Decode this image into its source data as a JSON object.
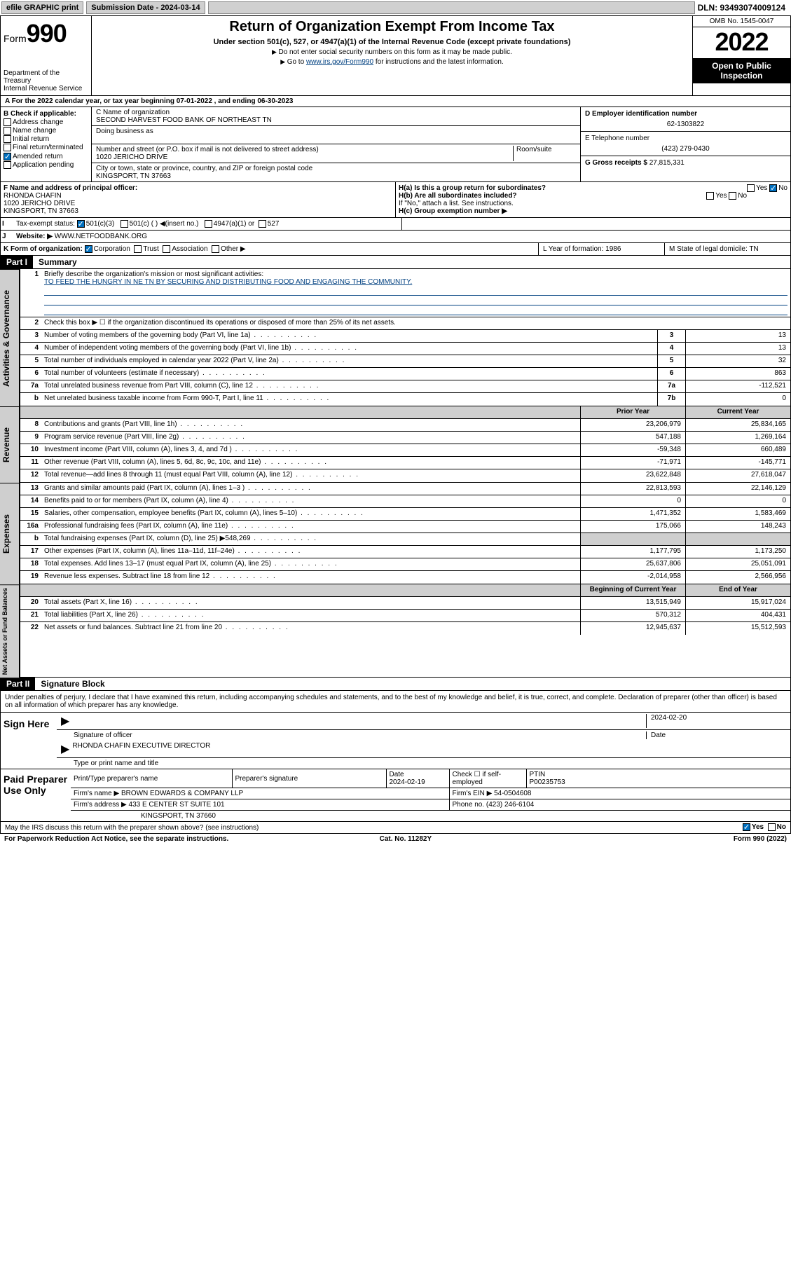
{
  "topbar": {
    "efile": "efile GRAPHIC print",
    "submission_label": "Submission Date - 2024-03-14",
    "dln": "DLN: 93493074009124"
  },
  "header": {
    "form_label": "Form",
    "form_number": "990",
    "dept": "Department of the Treasury",
    "irs": "Internal Revenue Service",
    "title": "Return of Organization Exempt From Income Tax",
    "subtitle": "Under section 501(c), 527, or 4947(a)(1) of the Internal Revenue Code (except private foundations)",
    "note1": "Do not enter social security numbers on this form as it may be made public.",
    "note2_pre": "Go to ",
    "note2_link": "www.irs.gov/Form990",
    "note2_post": " for instructions and the latest information.",
    "omb": "OMB No. 1545-0047",
    "year": "2022",
    "open": "Open to Public Inspection"
  },
  "A": {
    "text": "For the 2022 calendar year, or tax year beginning 07-01-2022    , and ending 06-30-2023"
  },
  "B": {
    "label": "B Check if applicable:",
    "opts": [
      "Address change",
      "Name change",
      "Initial return",
      "Final return/terminated",
      "Amended return",
      "Application pending"
    ],
    "checked_idx": 4
  },
  "C": {
    "label": "C Name of organization",
    "name": "SECOND HARVEST FOOD BANK OF NORTHEAST TN",
    "dba_label": "Doing business as",
    "street_label": "Number and street (or P.O. box if mail is not delivered to street address)",
    "room_label": "Room/suite",
    "street": "1020 JERICHO DRIVE",
    "city_label": "City or town, state or province, country, and ZIP or foreign postal code",
    "city": "KINGSPORT, TN  37663"
  },
  "D": {
    "label": "D Employer identification number",
    "val": "62-1303822"
  },
  "E": {
    "label": "E Telephone number",
    "val": "(423) 279-0430"
  },
  "G": {
    "label": "G Gross receipts $",
    "val": "27,815,331"
  },
  "F": {
    "label": "F  Name and address of principal officer:",
    "name": "RHONDA CHAFIN",
    "addr1": "1020 JERICHO DRIVE",
    "addr2": "KINGSPORT, TN  37663"
  },
  "H": {
    "a": "H(a)  Is this a group return for subordinates?",
    "b": "H(b)  Are all subordinates included?",
    "b_note": "If \"No,\" attach a list. See instructions.",
    "c": "H(c)  Group exemption number ▶",
    "yes": "Yes",
    "no": "No"
  },
  "I": {
    "label": "Tax-exempt status:",
    "opts": [
      "501(c)(3)",
      "501(c) (  ) ◀(insert no.)",
      "4947(a)(1) or",
      "527"
    ],
    "checked_idx": 0
  },
  "J": {
    "label": "Website: ▶",
    "val": "WWW.NETFOODBANK.ORG"
  },
  "K": {
    "label": "K Form of organization:",
    "opts": [
      "Corporation",
      "Trust",
      "Association",
      "Other ▶"
    ],
    "checked_idx": 0
  },
  "L": {
    "label": "L Year of formation: 1986"
  },
  "M": {
    "label": "M State of legal domicile: TN"
  },
  "part1": {
    "hdr": "Part I",
    "title": "Summary",
    "l1_label": "Briefly describe the organization's mission or most significant activities:",
    "l1_text": "TO FEED THE HUNGRY IN NE TN BY SECURING AND DISTRIBUTING FOOD AND ENGAGING THE COMMUNITY.",
    "l2": "Check this box ▶ ☐  if the organization discontinued its operations or disposed of more than 25% of its net assets.",
    "rows_gov": [
      {
        "n": "3",
        "t": "Number of voting members of the governing body (Part VI, line 1a)",
        "box": "3",
        "v": "13"
      },
      {
        "n": "4",
        "t": "Number of independent voting members of the governing body (Part VI, line 1b)",
        "box": "4",
        "v": "13"
      },
      {
        "n": "5",
        "t": "Total number of individuals employed in calendar year 2022 (Part V, line 2a)",
        "box": "5",
        "v": "32"
      },
      {
        "n": "6",
        "t": "Total number of volunteers (estimate if necessary)",
        "box": "6",
        "v": "863"
      },
      {
        "n": "7a",
        "t": "Total unrelated business revenue from Part VIII, column (C), line 12",
        "box": "7a",
        "v": "-112,521"
      },
      {
        "n": "b",
        "t": "Net unrelated business taxable income from Form 990-T, Part I, line 11",
        "box": "7b",
        "v": "0"
      }
    ],
    "col_prior": "Prior Year",
    "col_curr": "Current Year",
    "rows_rev": [
      {
        "n": "8",
        "t": "Contributions and grants (Part VIII, line 1h)",
        "p": "23,206,979",
        "c": "25,834,165"
      },
      {
        "n": "9",
        "t": "Program service revenue (Part VIII, line 2g)",
        "p": "547,188",
        "c": "1,269,164"
      },
      {
        "n": "10",
        "t": "Investment income (Part VIII, column (A), lines 3, 4, and 7d )",
        "p": "-59,348",
        "c": "660,489"
      },
      {
        "n": "11",
        "t": "Other revenue (Part VIII, column (A), lines 5, 6d, 8c, 9c, 10c, and 11e)",
        "p": "-71,971",
        "c": "-145,771"
      },
      {
        "n": "12",
        "t": "Total revenue—add lines 8 through 11 (must equal Part VIII, column (A), line 12)",
        "p": "23,622,848",
        "c": "27,618,047"
      }
    ],
    "rows_exp": [
      {
        "n": "13",
        "t": "Grants and similar amounts paid (Part IX, column (A), lines 1–3 )",
        "p": "22,813,593",
        "c": "22,146,129"
      },
      {
        "n": "14",
        "t": "Benefits paid to or for members (Part IX, column (A), line 4)",
        "p": "0",
        "c": "0"
      },
      {
        "n": "15",
        "t": "Salaries, other compensation, employee benefits (Part IX, column (A), lines 5–10)",
        "p": "1,471,352",
        "c": "1,583,469"
      },
      {
        "n": "16a",
        "t": "Professional fundraising fees (Part IX, column (A), line 11e)",
        "p": "175,066",
        "c": "148,243"
      },
      {
        "n": "b",
        "t": "Total fundraising expenses (Part IX, column (D), line 25) ▶548,269",
        "p": "",
        "c": ""
      },
      {
        "n": "17",
        "t": "Other expenses (Part IX, column (A), lines 11a–11d, 11f–24e)",
        "p": "1,177,795",
        "c": "1,173,250"
      },
      {
        "n": "18",
        "t": "Total expenses. Add lines 13–17 (must equal Part IX, column (A), line 25)",
        "p": "25,637,806",
        "c": "25,051,091"
      },
      {
        "n": "19",
        "t": "Revenue less expenses. Subtract line 18 from line 12",
        "p": "-2,014,958",
        "c": "2,566,956"
      }
    ],
    "col_begin": "Beginning of Current Year",
    "col_end": "End of Year",
    "rows_net": [
      {
        "n": "20",
        "t": "Total assets (Part X, line 16)",
        "p": "13,515,949",
        "c": "15,917,024"
      },
      {
        "n": "21",
        "t": "Total liabilities (Part X, line 26)",
        "p": "570,312",
        "c": "404,431"
      },
      {
        "n": "22",
        "t": "Net assets or fund balances. Subtract line 21 from line 20",
        "p": "12,945,637",
        "c": "15,512,593"
      }
    ],
    "vlab_gov": "Activities & Governance",
    "vlab_rev": "Revenue",
    "vlab_exp": "Expenses",
    "vlab_net": "Net Assets or Fund Balances"
  },
  "part2": {
    "hdr": "Part II",
    "title": "Signature Block",
    "para": "Under penalties of perjury, I declare that I have examined this return, including accompanying schedules and statements, and to the best of my knowledge and belief, it is true, correct, and complete. Declaration of preparer (other than officer) is based on all information of which preparer has any knowledge.",
    "sign_here": "Sign Here",
    "sig_officer": "Signature of officer",
    "sig_date": "2024-02-20",
    "date_label": "Date",
    "officer_name": "RHONDA CHAFIN  EXECUTIVE DIRECTOR",
    "officer_sub": "Type or print name and title"
  },
  "prep": {
    "label": "Paid Preparer Use Only",
    "r1": {
      "c1": "Print/Type preparer's name",
      "c2": "Preparer's signature",
      "c3": "Date\n2024-02-19",
      "c4": "Check ☐ if self-employed",
      "c5": "PTIN\nP00235753"
    },
    "r2": {
      "c1": "Firm's name    ▶ BROWN EDWARDS & COMPANY LLP",
      "c2": "Firm's EIN ▶ 54-0504608"
    },
    "r3": {
      "c1": "Firm's address ▶ 433 E CENTER ST SUITE 101",
      "c2": "Phone no. (423) 246-6104"
    },
    "r4": {
      "c1": "KINGSPORT, TN  37660"
    }
  },
  "foot": {
    "q": "May the IRS discuss this return with the preparer shown above? (see instructions)",
    "yes": "Yes",
    "no": "No",
    "paperwork": "For Paperwork Reduction Act Notice, see the separate instructions.",
    "cat": "Cat. No. 11282Y",
    "form": "Form 990 (2022)"
  },
  "style": {
    "link_color": "#004080",
    "hdr_bg": "#000000",
    "shade_bg": "#cfcfcf",
    "check_blue": "#0070c0"
  }
}
